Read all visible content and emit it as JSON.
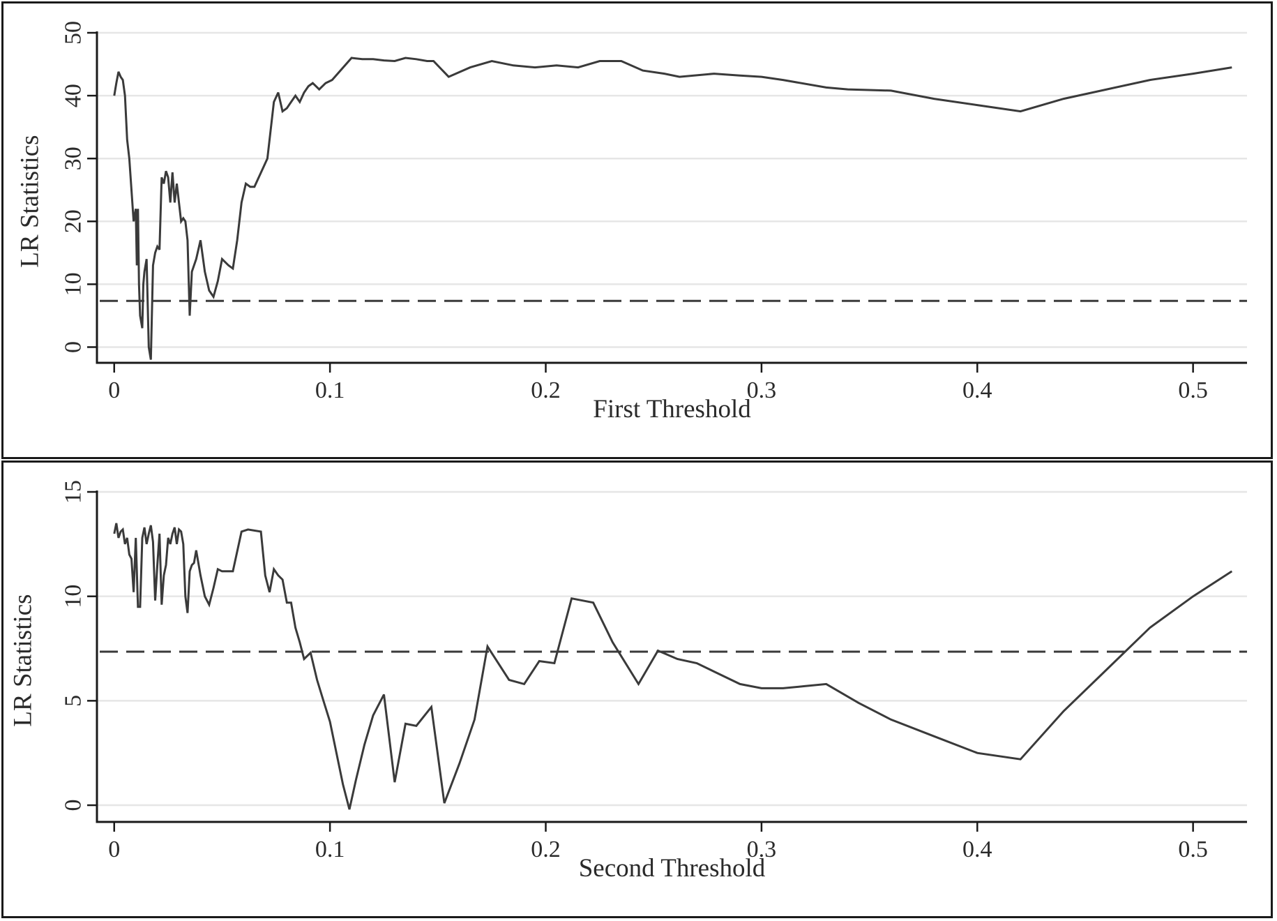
{
  "chart_data": [
    {
      "type": "line",
      "xlabel": "First Threshold",
      "ylabel": "LR Statistics",
      "xlim": [
        -0.008,
        0.525
      ],
      "ylim": [
        -2.5,
        50
      ],
      "xticks": [
        0,
        0.1,
        0.2,
        0.3,
        0.4,
        0.5
      ],
      "xtick_labels": [
        "0",
        "0.1",
        "0.2",
        "0.3",
        "0.4",
        "0.5"
      ],
      "yticks": [
        0,
        10,
        20,
        30,
        40,
        50
      ],
      "ytick_labels": [
        "0",
        "10",
        "20",
        "30",
        "40",
        "50"
      ],
      "grid": "horizontal",
      "critical_value": 7.35,
      "colors": {
        "line": "#3a3a3a",
        "dash": "#3a3a3a",
        "grid": "#e6e6e6",
        "axis": "#1a1a1a"
      },
      "series": [
        {
          "x": [
            0,
            0.001,
            0.002,
            0.003,
            0.004,
            0.005,
            0.006,
            0.007,
            0.008,
            0.009,
            0.01,
            0.0105,
            0.011,
            0.0115,
            0.012,
            0.013,
            0.0135,
            0.014,
            0.015,
            0.016,
            0.017,
            0.018,
            0.019,
            0.02,
            0.021,
            0.022,
            0.023,
            0.024,
            0.025,
            0.026,
            0.027,
            0.028,
            0.029,
            0.03,
            0.031,
            0.032,
            0.033,
            0.034,
            0.035,
            0.036,
            0.037,
            0.038,
            0.04,
            0.042,
            0.044,
            0.046,
            0.048,
            0.05,
            0.053,
            0.055,
            0.057,
            0.059,
            0.061,
            0.063,
            0.065,
            0.067,
            0.069,
            0.071,
            0.072,
            0.074,
            0.076,
            0.078,
            0.08,
            0.082,
            0.084,
            0.086,
            0.088,
            0.09,
            0.092,
            0.095,
            0.098,
            0.101,
            0.11,
            0.115,
            0.12,
            0.125,
            0.13,
            0.135,
            0.14,
            0.145,
            0.148,
            0.155,
            0.165,
            0.175,
            0.185,
            0.195,
            0.205,
            0.215,
            0.225,
            0.235,
            0.245,
            0.255,
            0.262,
            0.278,
            0.29,
            0.3,
            0.31,
            0.33,
            0.34,
            0.36,
            0.38,
            0.4,
            0.42,
            0.44,
            0.46,
            0.48,
            0.5,
            0.518
          ],
          "y": [
            40,
            42,
            43.8,
            43,
            42.5,
            40,
            33,
            30,
            25,
            20,
            22,
            13,
            22,
            10,
            5,
            3,
            10,
            12,
            14,
            0,
            -2,
            13,
            15,
            16,
            15.5,
            27,
            26,
            28,
            27,
            23,
            27.8,
            23,
            26,
            23,
            20,
            20.5,
            20,
            17,
            5,
            12,
            13,
            14,
            17,
            12,
            9,
            8,
            10.5,
            14,
            13,
            12.5,
            17,
            23,
            26,
            25.5,
            25.5,
            27,
            28.5,
            30,
            33,
            39,
            40.5,
            37.5,
            38,
            39,
            40,
            39,
            40.5,
            41.5,
            42,
            41,
            42,
            42.5,
            46,
            45.8,
            45.8,
            45.6,
            45.5,
            46,
            45.8,
            45.5,
            45.5,
            43,
            44.5,
            45.5,
            44.8,
            44.5,
            44.8,
            44.5,
            45.5,
            45.5,
            44,
            43.5,
            43,
            43.5,
            43.2,
            43,
            42.5,
            41.3,
            41,
            40.8,
            39.5,
            38.5,
            37.5,
            39.5,
            41,
            42.5,
            43.5,
            44.5
          ]
        }
      ]
    },
    {
      "type": "line",
      "xlabel": "Second Threshold",
      "ylabel": "LR Statistics",
      "xlim": [
        -0.008,
        0.525
      ],
      "ylim": [
        -0.8,
        15
      ],
      "xticks": [
        0,
        0.1,
        0.2,
        0.3,
        0.4,
        0.5
      ],
      "xtick_labels": [
        "0",
        "0.1",
        "0.2",
        "0.3",
        "0.4",
        "0.5"
      ],
      "yticks": [
        0,
        5,
        10,
        15
      ],
      "ytick_labels": [
        "0",
        "5",
        "10",
        "15"
      ],
      "grid": "horizontal",
      "critical_value": 7.35,
      "colors": {
        "line": "#3a3a3a",
        "dash": "#3a3a3a",
        "grid": "#e6e6e6",
        "axis": "#1a1a1a"
      },
      "series": [
        {
          "x": [
            0,
            0.001,
            0.002,
            0.003,
            0.004,
            0.005,
            0.006,
            0.007,
            0.008,
            0.009,
            0.01,
            0.011,
            0.012,
            0.013,
            0.014,
            0.015,
            0.016,
            0.017,
            0.018,
            0.019,
            0.02,
            0.021,
            0.022,
            0.023,
            0.024,
            0.025,
            0.026,
            0.027,
            0.028,
            0.029,
            0.03,
            0.031,
            0.032,
            0.033,
            0.034,
            0.035,
            0.036,
            0.037,
            0.038,
            0.04,
            0.042,
            0.044,
            0.046,
            0.048,
            0.05,
            0.055,
            0.059,
            0.062,
            0.068,
            0.07,
            0.072,
            0.074,
            0.076,
            0.078,
            0.08,
            0.082,
            0.084,
            0.086,
            0.088,
            0.091,
            0.094,
            0.097,
            0.1,
            0.103,
            0.106,
            0.109,
            0.112,
            0.116,
            0.12,
            0.125,
            0.13,
            0.135,
            0.14,
            0.147,
            0.153,
            0.16,
            0.167,
            0.173,
            0.183,
            0.19,
            0.197,
            0.204,
            0.212,
            0.222,
            0.231,
            0.243,
            0.252,
            0.261,
            0.27,
            0.278,
            0.29,
            0.3,
            0.31,
            0.32,
            0.33,
            0.345,
            0.36,
            0.38,
            0.4,
            0.42,
            0.44,
            0.46,
            0.48,
            0.5,
            0.518
          ],
          "y": [
            13,
            13.5,
            12.8,
            13.1,
            13.2,
            12.5,
            12.8,
            12,
            11.8,
            10.2,
            12.8,
            9.5,
            9.5,
            12.8,
            13.3,
            12.5,
            13,
            13.4,
            12.6,
            9.8,
            11.5,
            13,
            9.6,
            11,
            11.5,
            12.8,
            12.5,
            13,
            13.3,
            12.5,
            13.2,
            13.1,
            12.5,
            10,
            9.2,
            11.2,
            11.5,
            11.6,
            12.2,
            11,
            10,
            9.6,
            10.4,
            11.3,
            11.2,
            11.2,
            13.1,
            13.2,
            13.1,
            11,
            10.2,
            11.3,
            11,
            10.8,
            9.7,
            9.7,
            8.5,
            7.8,
            7.0,
            7.3,
            6.0,
            5.0,
            4.0,
            2.5,
            1.0,
            -0.2,
            1.2,
            2.9,
            4.3,
            5.3,
            1.1,
            3.9,
            3.8,
            4.7,
            0.1,
            2,
            4.1,
            7.6,
            6,
            5.8,
            6.9,
            6.8,
            9.9,
            9.7,
            7.8,
            5.8,
            7.4,
            7.0,
            6.8,
            6.4,
            5.8,
            5.6,
            5.6,
            5.7,
            5.8,
            4.9,
            4.1,
            3.3,
            2.5,
            2.2,
            4.5,
            6.5,
            8.5,
            10,
            11.2
          ]
        }
      ]
    }
  ]
}
